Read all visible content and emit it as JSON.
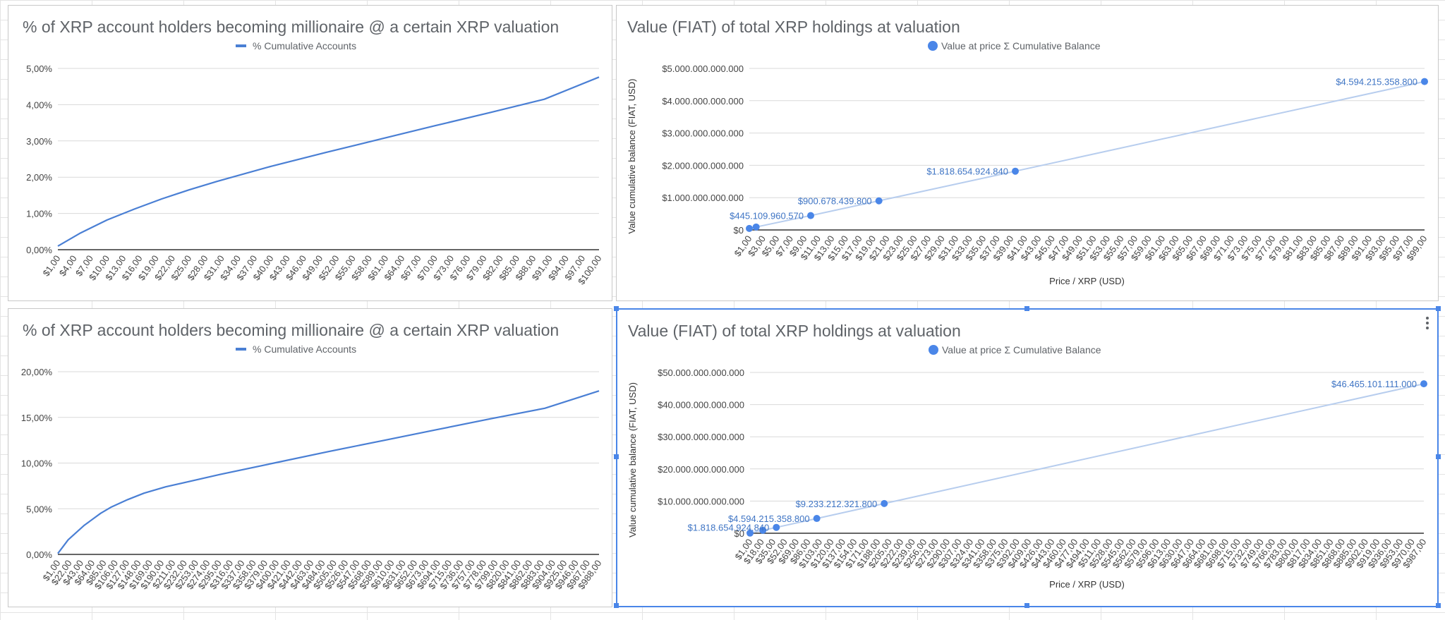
{
  "colors": {
    "line": "#4a7fd4",
    "point": "#4a86e8",
    "faint_line": "#b7cdee",
    "selection": "#4a86e8"
  },
  "selected_chart": 3,
  "icons": {
    "menu": "kebab-menu-icon"
  },
  "chart_data": [
    {
      "type": "line",
      "title": "% of XRP account holders becoming millionaire @ a certain XRP valuation",
      "legend": "% Cumulative Accounts",
      "legend_position": "top",
      "grid": true,
      "x_min": 1,
      "x_max": 100,
      "x_ticks": [
        "$1,00",
        "$4,00",
        "$7,00",
        "$10,00",
        "$13,00",
        "$16,00",
        "$19,00",
        "$22,00",
        "$25,00",
        "$28,00",
        "$31,00",
        "$34,00",
        "$37,00",
        "$40,00",
        "$43,00",
        "$46,00",
        "$49,00",
        "$52,00",
        "$55,00",
        "$58,00",
        "$61,00",
        "$64,00",
        "$67,00",
        "$70,00",
        "$73,00",
        "$76,00",
        "$79,00",
        "$82,00",
        "$85,00",
        "$88,00",
        "$91,00",
        "$94,00",
        "$97,00",
        "$100,00"
      ],
      "y_ticks": [
        "0,00%",
        "1,00%",
        "2,00%",
        "3,00%",
        "4,00%",
        "5,00%"
      ],
      "ylim": [
        0,
        5
      ],
      "series": [
        {
          "name": "% Cumulative Accounts",
          "x": [
            1,
            5,
            10,
            15,
            20,
            25,
            30,
            40,
            50,
            60,
            70,
            80,
            90,
            100
          ],
          "y": [
            0.1,
            0.45,
            0.82,
            1.12,
            1.4,
            1.65,
            1.88,
            2.3,
            2.68,
            3.05,
            3.42,
            3.78,
            4.15,
            4.76
          ]
        }
      ]
    },
    {
      "type": "scatter",
      "title": "Value (FIAT) of total XRP holdings at valuation",
      "legend": "Value at price Σ Cumulative Balance",
      "legend_position": "top",
      "xlabel": "Price / XRP (USD)",
      "ylabel": "Value cumulative balance (FIAT, USD)",
      "grid": true,
      "x_min": 1,
      "x_max": 100,
      "x_ticks": [
        "$1,00",
        "$3,00",
        "$5,00",
        "$7,00",
        "$9,00",
        "$11,00",
        "$13,00",
        "$15,00",
        "$17,00",
        "$19,00",
        "$21,00",
        "$23,00",
        "$25,00",
        "$27,00",
        "$29,00",
        "$31,00",
        "$33,00",
        "$35,00",
        "$37,00",
        "$39,00",
        "$41,00",
        "$43,00",
        "$45,00",
        "$47,00",
        "$49,00",
        "$51,00",
        "$53,00",
        "$55,00",
        "$57,00",
        "$59,00",
        "$61,00",
        "$63,00",
        "$65,00",
        "$67,00",
        "$69,00",
        "$71,00",
        "$73,00",
        "$75,00",
        "$77,00",
        "$79,00",
        "$81,00",
        "$83,00",
        "$85,00",
        "$87,00",
        "$89,00",
        "$91,00",
        "$93,00",
        "$95,00",
        "$97,00",
        "$99,00"
      ],
      "y_ticks": [
        "$0",
        "$1.000.000.000.000",
        "$2.000.000.000.000",
        "$3.000.000.000.000",
        "$4.000.000.000.000",
        "$5.000.000.000.000"
      ],
      "ylim": [
        0,
        5000000000000
      ],
      "series": [
        {
          "name": "Value at price Σ Cumulative Balance",
          "x": [
            1,
            2,
            10,
            20,
            40,
            100
          ],
          "y": [
            45945910000,
            90916730000,
            445109960570,
            900678439800,
            1818654924840,
            4594215358800
          ]
        }
      ],
      "data_labels": [
        {
          "x": 10,
          "y": 445109960570,
          "text": "$445.109.960.570"
        },
        {
          "x": 20,
          "y": 900678439800,
          "text": "$900.678.439.800"
        },
        {
          "x": 40,
          "y": 1818654924840,
          "text": "$1.818.654.924.840"
        },
        {
          "x": 100,
          "y": 4594215358800,
          "text": "$4.594.215.358.800"
        }
      ]
    },
    {
      "type": "line",
      "title": "% of XRP account holders becoming millionaire @ a certain XRP valuation",
      "legend": "% Cumulative Accounts",
      "legend_position": "top",
      "grid": true,
      "x_min": 1,
      "x_max": 1000,
      "x_ticks": [
        "$1,00",
        "$22,00",
        "$43,00",
        "$64,00",
        "$85,00",
        "$106,00",
        "$127,00",
        "$148,00",
        "$169,00",
        "$190,00",
        "$211,00",
        "$232,00",
        "$253,00",
        "$274,00",
        "$295,00",
        "$316,00",
        "$337,00",
        "$358,00",
        "$379,00",
        "$400,00",
        "$421,00",
        "$442,00",
        "$463,00",
        "$484,00",
        "$505,00",
        "$526,00",
        "$547,00",
        "$568,00",
        "$589,00",
        "$610,00",
        "$631,00",
        "$652,00",
        "$673,00",
        "$694,00",
        "$715,00",
        "$736,00",
        "$757,00",
        "$778,00",
        "$799,00",
        "$820,00",
        "$841,00",
        "$862,00",
        "$883,00",
        "$904,00",
        "$925,00",
        "$946,00",
        "$967,00",
        "$988,00"
      ],
      "y_ticks": [
        "0,00%",
        "5,00%",
        "10,00%",
        "15,00%",
        "20,00%"
      ],
      "ylim": [
        0,
        20
      ],
      "series": [
        {
          "name": "% Cumulative Accounts",
          "x": [
            1,
            20,
            50,
            80,
            100,
            130,
            160,
            200,
            300,
            400,
            500,
            600,
            700,
            800,
            900,
            1000
          ],
          "y": [
            0.1,
            1.6,
            3.2,
            4.5,
            5.2,
            6.0,
            6.7,
            7.4,
            8.75,
            10.0,
            11.25,
            12.45,
            13.65,
            14.85,
            16.0,
            17.9
          ]
        }
      ]
    },
    {
      "type": "scatter",
      "title": "Value (FIAT) of total XRP holdings at valuation",
      "legend": "Value at price Σ Cumulative Balance",
      "legend_position": "top",
      "xlabel": "Price / XRP (USD)",
      "ylabel": "Value cumulative balance (FIAT, USD)",
      "grid": true,
      "x_min": 1,
      "x_max": 1000,
      "x_ticks": [
        "$1,00",
        "$18,00",
        "$35,00",
        "$52,00",
        "$69,00",
        "$86,00",
        "$103,00",
        "$120,00",
        "$137,00",
        "$154,00",
        "$171,00",
        "$188,00",
        "$205,00",
        "$222,00",
        "$239,00",
        "$256,00",
        "$273,00",
        "$290,00",
        "$307,00",
        "$324,00",
        "$341,00",
        "$358,00",
        "$375,00",
        "$392,00",
        "$409,00",
        "$426,00",
        "$443,00",
        "$460,00",
        "$477,00",
        "$494,00",
        "$511,00",
        "$528,00",
        "$545,00",
        "$562,00",
        "$579,00",
        "$596,00",
        "$613,00",
        "$630,00",
        "$647,00",
        "$664,00",
        "$681,00",
        "$698,00",
        "$715,00",
        "$732,00",
        "$749,00",
        "$766,00",
        "$783,00",
        "$800,00",
        "$817,00",
        "$834,00",
        "$851,00",
        "$868,00",
        "$885,00",
        "$902,00",
        "$919,00",
        "$936,00",
        "$953,00",
        "$970,00",
        "$987,00"
      ],
      "y_ticks": [
        "$0",
        "$10.000.000.000.000",
        "$20.000.000.000.000",
        "$30.000.000.000.000",
        "$40.000.000.000.000",
        "$50.000.000.000.000"
      ],
      "ylim": [
        0,
        50000000000000
      ],
      "series": [
        {
          "name": "Value at price Σ Cumulative Balance",
          "x": [
            1,
            20,
            40,
            100,
            200,
            1000
          ],
          "y": [
            45945910000,
            900678439800,
            1818654924840,
            4594215358800,
            9233212321800,
            46465101111000
          ]
        }
      ],
      "data_labels": [
        {
          "x": 40,
          "y": 1818654924840,
          "text": "$1.818.654.924.840"
        },
        {
          "x": 100,
          "y": 4594215358800,
          "text": "$4.594.215.358.800"
        },
        {
          "x": 200,
          "y": 9233212321800,
          "text": "$9.233.212.321.800"
        },
        {
          "x": 1000,
          "y": 46465101111000,
          "text": "$46.465.101.111.000"
        }
      ]
    }
  ]
}
